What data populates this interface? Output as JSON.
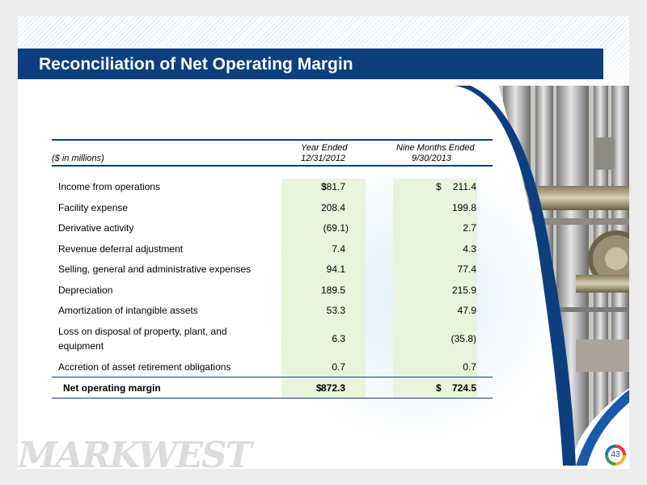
{
  "title": "Reconciliation of Net Operating Margin",
  "table": {
    "units_label": "($ in millions)",
    "col1_header_line1": "Year Ended",
    "col1_header_line2": "12/31/2012",
    "col2_header_line1": "Nine Months Ended",
    "col2_header_line2": "9/30/2013",
    "currency_symbol": "$",
    "rows": [
      {
        "label": "Income from operations",
        "v1": "381.7",
        "v2": "211.4"
      },
      {
        "label": "Facility expense",
        "v1": "208.4",
        "v2": "199.8"
      },
      {
        "label": "Derivative activity",
        "v1": "(69.1)",
        "v2": "2.7"
      },
      {
        "label": "Revenue deferral adjustment",
        "v1": "7.4",
        "v2": "4.3"
      },
      {
        "label": "Selling, general and administrative expenses",
        "v1": "94.1",
        "v2": "77.4"
      },
      {
        "label": "Depreciation",
        "v1": "189.5",
        "v2": "215.9"
      },
      {
        "label": "Amortization of intangible assets",
        "v1": "53.3",
        "v2": "47.9"
      },
      {
        "label": "Loss on disposal of property, plant, and equipment",
        "v1": "6.3",
        "v2": "(35.8)"
      },
      {
        "label": "Accretion of asset retirement obligations",
        "v1": "0.7",
        "v2": "0.7"
      }
    ],
    "total": {
      "label": "Net operating margin",
      "v1": "872.3",
      "v2": "724.5"
    }
  },
  "logo_text": "MARKWEST",
  "page_number": "43",
  "colors": {
    "title_bar": "#0d3f7f",
    "column_shade": "#e8f4dc"
  }
}
